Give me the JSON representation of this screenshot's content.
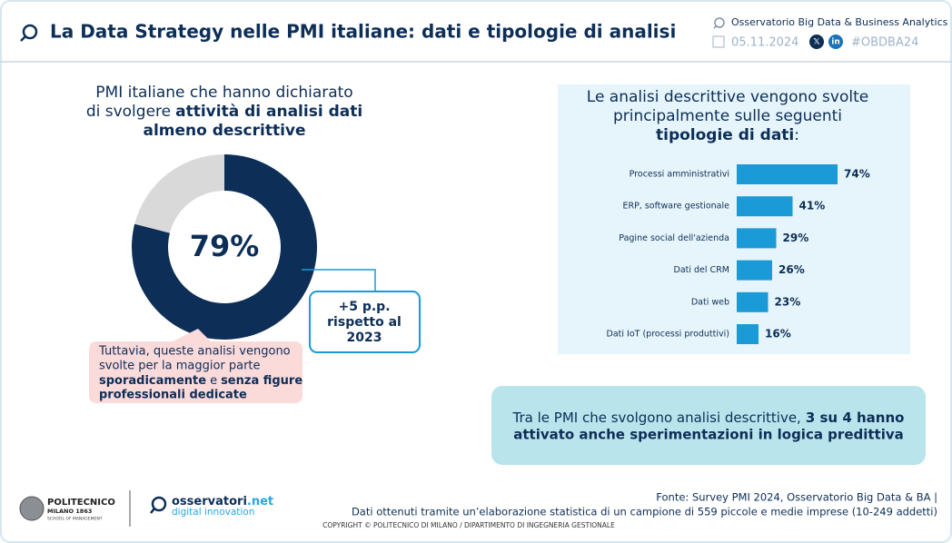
{
  "header": {
    "title": "La Data Strategy nelle PMI italiane: dati e tipologie di analisi",
    "organization": "Osservatorio Big Data & Business Analytics",
    "date": "05.11.2024",
    "hashtag": "#OBDBA24"
  },
  "chart_data": [
    {
      "type": "donut",
      "title": [
        "PMI italiane che hanno dichiarato",
        "di svolgere",
        "attività di analisi dati",
        "almeno descrittive"
      ],
      "values": [
        79,
        21
      ],
      "value_labels": [
        "79%",
        null
      ],
      "colors": [
        "#0d2e57",
        "#d9d9d9"
      ],
      "annotation": [
        "+5 p.p.",
        "rispetto al",
        "2023"
      ],
      "note": [
        "Tuttavia, queste analisi vengono",
        "svolte per la maggior parte",
        "sporadicamente",
        "e",
        "senza figure",
        "professionali dedicate"
      ]
    },
    {
      "type": "hbar",
      "title": [
        "Le analisi descrittive vengono svolte",
        "principalmente sulle seguenti",
        "tipologie di dati",
        ":"
      ],
      "categories": [
        "Processi amministrativi",
        "ERP, software gestionale",
        "Pagine social dell'azienda",
        "Dati del CRM",
        "Dati web",
        "Dati IoT (processi produttivi)"
      ],
      "values": [
        74,
        41,
        29,
        26,
        23,
        16
      ],
      "value_labels": [
        "74%",
        "41%",
        "29%",
        "26%",
        "23%",
        "16%"
      ],
      "color": "#1a9ad6"
    }
  ],
  "callout": [
    "Tra le PMI che svolgono analisi descrittive,",
    "3 su 4 hanno",
    "attivato anche sperimentazioni in logica predittiva"
  ],
  "footer": {
    "logo1": [
      "POLITECNICO",
      "MILANO 1863",
      "SCHOOL OF MANAGEMENT"
    ],
    "logo2": [
      "osservatori",
      ".net",
      "digital innovation"
    ],
    "source": [
      "Fonte: Survey PMI 2024, Osservatorio Big Data & BA |",
      "Dati ottenuti tramite un’elaborazione statistica di un campione di 559 piccole e medie imprese (10-249 addetti)"
    ],
    "copyright": "COPYRIGHT © POLITECNICO DI MILANO / DIPARTIMENTO DI INGEGNERIA GESTIONALE"
  }
}
